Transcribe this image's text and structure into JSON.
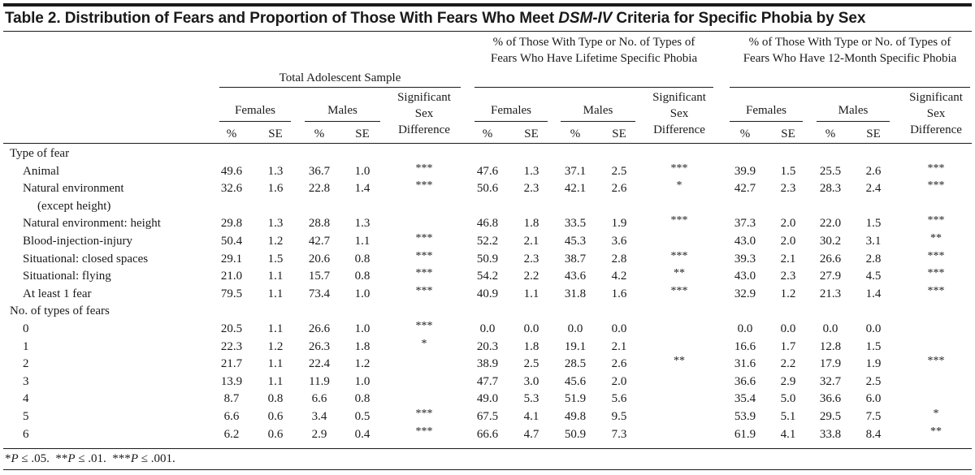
{
  "title": {
    "prefix": "Table 2. Distribution of Fears and Proportion of Those With Fears Who Meet ",
    "italic": "DSM-IV",
    "suffix": " Criteria for Specific Phobia by Sex"
  },
  "groups": [
    {
      "label": "Total Adolescent Sample"
    },
    {
      "label": "% of Those With Type or No. of Types of Fears Who Have Lifetime Specific Phobia"
    },
    {
      "label": "% of Those With Type or No. of Types of Fears Who Have 12-Month Specific Phobia"
    }
  ],
  "sub_headers": {
    "females": "Females",
    "males": "Males",
    "sig": "Significant Sex Difference"
  },
  "col_headers": {
    "pct": "%",
    "se": "SE"
  },
  "sections": [
    {
      "label": "Type of fear",
      "rows": [
        {
          "label": "Animal",
          "vals": [
            "49.6",
            "1.3",
            "36.7",
            "1.0",
            "***",
            "47.6",
            "1.3",
            "37.1",
            "2.5",
            "***",
            "39.9",
            "1.5",
            "25.5",
            "2.6",
            "***"
          ]
        },
        {
          "label": "Natural environment",
          "label2": "(except height)",
          "vals": [
            "32.6",
            "1.6",
            "22.8",
            "1.4",
            "***",
            "50.6",
            "2.3",
            "42.1",
            "2.6",
            "*",
            "42.7",
            "2.3",
            "28.3",
            "2.4",
            "***"
          ]
        },
        {
          "label": "Natural environment: height",
          "vals": [
            "29.8",
            "1.3",
            "28.8",
            "1.3",
            "",
            "46.8",
            "1.8",
            "33.5",
            "1.9",
            "***",
            "37.3",
            "2.0",
            "22.0",
            "1.5",
            "***"
          ]
        },
        {
          "label": "Blood-injection-injury",
          "vals": [
            "50.4",
            "1.2",
            "42.7",
            "1.1",
            "***",
            "52.2",
            "2.1",
            "45.3",
            "3.6",
            "",
            "43.0",
            "2.0",
            "30.2",
            "3.1",
            "**"
          ]
        },
        {
          "label": "Situational: closed spaces",
          "vals": [
            "29.1",
            "1.5",
            "20.6",
            "0.8",
            "***",
            "50.9",
            "2.3",
            "38.7",
            "2.8",
            "***",
            "39.3",
            "2.1",
            "26.6",
            "2.8",
            "***"
          ]
        },
        {
          "label": "Situational: flying",
          "vals": [
            "21.0",
            "1.1",
            "15.7",
            "0.8",
            "***",
            "54.2",
            "2.2",
            "43.6",
            "4.2",
            "**",
            "43.0",
            "2.3",
            "27.9",
            "4.5",
            "***"
          ]
        },
        {
          "label": "At least 1 fear",
          "vals": [
            "79.5",
            "1.1",
            "73.4",
            "1.0",
            "***",
            "40.9",
            "1.1",
            "31.8",
            "1.6",
            "***",
            "32.9",
            "1.2",
            "21.3",
            "1.4",
            "***"
          ]
        }
      ]
    },
    {
      "label": "No. of types of fears",
      "rows": [
        {
          "label": "0",
          "vals": [
            "20.5",
            "1.1",
            "26.6",
            "1.0",
            "***",
            "0.0",
            "0.0",
            "0.0",
            "0.0",
            "",
            "0.0",
            "0.0",
            "0.0",
            "0.0",
            ""
          ]
        },
        {
          "label": "1",
          "vals": [
            "22.3",
            "1.2",
            "26.3",
            "1.8",
            "*",
            "20.3",
            "1.8",
            "19.1",
            "2.1",
            "",
            "16.6",
            "1.7",
            "12.8",
            "1.5",
            ""
          ]
        },
        {
          "label": "2",
          "vals": [
            "21.7",
            "1.1",
            "22.4",
            "1.2",
            "",
            "38.9",
            "2.5",
            "28.5",
            "2.6",
            "**",
            "31.6",
            "2.2",
            "17.9",
            "1.9",
            "***"
          ]
        },
        {
          "label": "3",
          "vals": [
            "13.9",
            "1.1",
            "11.9",
            "1.0",
            "",
            "47.7",
            "3.0",
            "45.6",
            "2.0",
            "",
            "36.6",
            "2.9",
            "32.7",
            "2.5",
            ""
          ]
        },
        {
          "label": "4",
          "vals": [
            "8.7",
            "0.8",
            "6.6",
            "0.8",
            "",
            "49.0",
            "5.3",
            "51.9",
            "5.6",
            "",
            "35.4",
            "5.0",
            "36.6",
            "6.0",
            ""
          ]
        },
        {
          "label": "5",
          "vals": [
            "6.6",
            "0.6",
            "3.4",
            "0.5",
            "***",
            "67.5",
            "4.1",
            "49.8",
            "9.5",
            "",
            "53.9",
            "5.1",
            "29.5",
            "7.5",
            "*"
          ]
        },
        {
          "label": "6",
          "vals": [
            "6.2",
            "0.6",
            "2.9",
            "0.4",
            "***",
            "66.6",
            "4.7",
            "50.9",
            "7.3",
            "",
            "61.9",
            "4.1",
            "33.8",
            "8.4",
            "**"
          ]
        }
      ]
    }
  ],
  "footnote": [
    {
      "italic": false,
      "text": "*"
    },
    {
      "italic": true,
      "text": "P"
    },
    {
      "italic": false,
      "text": " ≤ .05.  **"
    },
    {
      "italic": true,
      "text": "P"
    },
    {
      "italic": false,
      "text": " ≤ .01.  ***"
    },
    {
      "italic": true,
      "text": "P"
    },
    {
      "italic": false,
      "text": " ≤ .001."
    }
  ]
}
